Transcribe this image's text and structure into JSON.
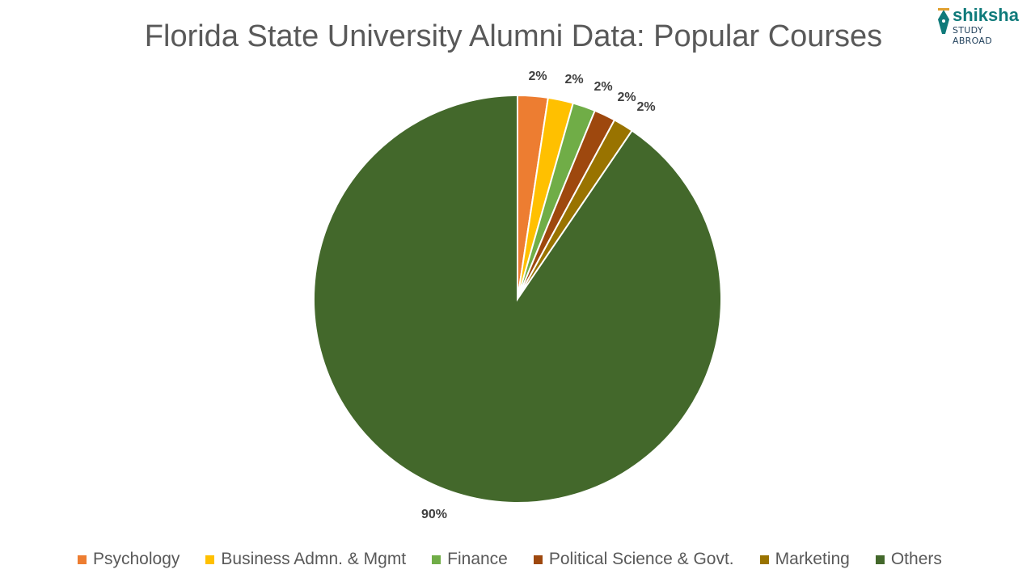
{
  "chart_data": {
    "type": "pie",
    "title": "Florida State University Alumni Data: Popular Courses",
    "categories": [
      "Psychology",
      "Business Admn. & Mgmt",
      "Finance",
      "Political Science & Govt.",
      "Marketing",
      "Others"
    ],
    "values": [
      2.4,
      2.0,
      1.8,
      1.7,
      1.6,
      90.5
    ],
    "data_labels": [
      "2%",
      "2%",
      "2%",
      "2%",
      "2%",
      "90%"
    ],
    "colors": [
      "#ED7D31",
      "#FFC000",
      "#70AD47",
      "#9E480E",
      "#997300",
      "#43682B"
    ],
    "legend_position": "bottom"
  },
  "logo": {
    "top": "shiksha",
    "bottom": "STUDY ABROAD"
  }
}
